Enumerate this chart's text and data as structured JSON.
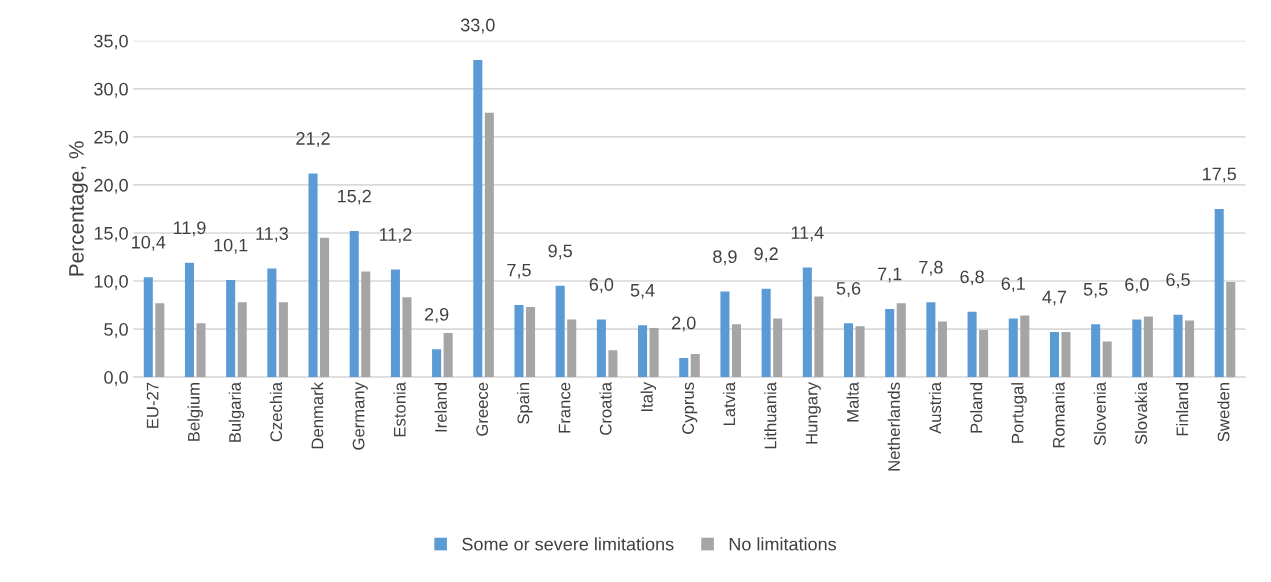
{
  "chart_data": {
    "type": "bar",
    "ylabel": "Percentage, %",
    "categories": [
      "EU-27",
      "Belgium",
      "Bulgaria",
      "Czechia",
      "Denmark",
      "Germany",
      "Estonia",
      "Ireland",
      "Greece",
      "Spain",
      "France",
      "Croatia",
      "Italy",
      "Cyprus",
      "Latvia",
      "Lithuania",
      "Hungary",
      "Malta",
      "Netherlands",
      "Austria",
      "Poland",
      "Portugal",
      "Romania",
      "Slovenia",
      "Slovakia",
      "Finland",
      "Sweden"
    ],
    "series": [
      {
        "name": "Some or severe limitations",
        "color": "#5b9bd5",
        "values": [
          10.4,
          11.9,
          10.1,
          11.3,
          21.2,
          15.2,
          11.2,
          2.9,
          33.0,
          7.5,
          9.5,
          6.0,
          5.4,
          2.0,
          8.9,
          9.2,
          11.4,
          5.6,
          7.1,
          7.8,
          6.8,
          6.1,
          4.7,
          5.5,
          6.0,
          6.5,
          17.5
        ],
        "value_labels": [
          "10,4",
          "11,9",
          "10,1",
          "11,3",
          "21,2",
          "15,2",
          "11,2",
          "2,9",
          "33,0",
          "7,5",
          "9,5",
          "6,0",
          "5,4",
          "2,0",
          "8,9",
          "9,2",
          "11,4",
          "5,6",
          "7,1",
          "7,8",
          "6,8",
          "6,1",
          "4,7",
          "5,5",
          "6,0",
          "6,5",
          "17,5"
        ]
      },
      {
        "name": "No limitations",
        "color": "#a5a5a5",
        "values": [
          7.7,
          5.6,
          7.8,
          7.8,
          14.5,
          11.0,
          8.3,
          4.6,
          27.5,
          7.3,
          6.0,
          2.8,
          5.1,
          2.4,
          5.5,
          6.1,
          8.4,
          5.3,
          7.7,
          5.8,
          4.9,
          6.4,
          4.7,
          3.7,
          6.3,
          5.9,
          9.9
        ]
      }
    ],
    "ylim": [
      0,
      35
    ],
    "yticks": [
      {
        "value": 0,
        "label": "0,0"
      },
      {
        "value": 5,
        "label": "5,0"
      },
      {
        "value": 10,
        "label": "10,0"
      },
      {
        "value": 15,
        "label": "15,0"
      },
      {
        "value": 20,
        "label": "20,0"
      },
      {
        "value": 25,
        "label": "25,0"
      },
      {
        "value": 30,
        "label": "30,0"
      },
      {
        "value": 35,
        "label": "35,0"
      }
    ],
    "grid": "y",
    "legend": "bottom"
  }
}
